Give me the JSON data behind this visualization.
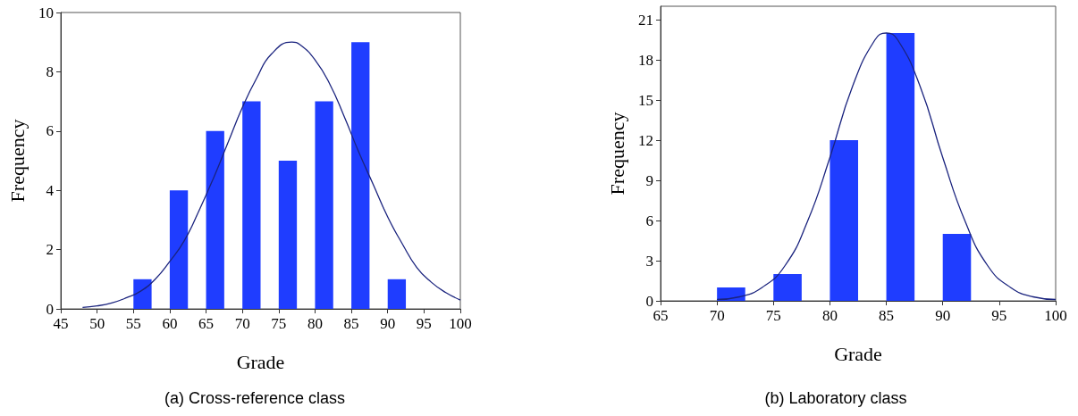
{
  "chart_data": [
    {
      "type": "histogram",
      "title": "(a) Cross-reference class",
      "xlabel": "Grade",
      "ylabel": "Frequency",
      "xlim": [
        45,
        100
      ],
      "xticks": [
        45,
        50,
        55,
        60,
        65,
        70,
        75,
        80,
        85,
        90,
        95,
        100
      ],
      "ylim": [
        0,
        10
      ],
      "yticks": [
        0,
        2,
        4,
        6,
        8,
        10
      ],
      "grid": false,
      "series": [
        {
          "color": "#1f3dff",
          "bins": [
            55,
            57.5,
            60,
            62.5,
            65,
            67.5,
            70,
            72.5,
            75,
            77.5,
            80,
            82.5,
            85,
            87.5,
            90,
            92.5
          ],
          "values": [
            1,
            0,
            4,
            0,
            6,
            0,
            7,
            0,
            5,
            0,
            7,
            0,
            9,
            0,
            1
          ]
        },
        {
          "type": "line",
          "color": "#1a237e",
          "x": [
            48,
            50,
            52,
            54,
            56,
            58,
            60,
            62,
            64,
            66,
            68,
            70,
            72,
            74,
            76.8,
            78,
            80,
            82,
            84,
            86,
            88,
            90,
            92,
            94,
            96,
            98,
            100
          ],
          "values": [
            0.05,
            0.1,
            0.2,
            0.37,
            0.6,
            1.0,
            1.6,
            2.3,
            3.3,
            4.4,
            5.6,
            6.8,
            7.8,
            8.6,
            9,
            8.9,
            8.4,
            7.6,
            6.5,
            5.3,
            4.2,
            3.1,
            2.2,
            1.4,
            0.9,
            0.55,
            0.3
          ]
        }
      ]
    },
    {
      "type": "histogram",
      "title": "(b) Laboratory class",
      "xlabel": "Grade",
      "ylabel": "Frequency",
      "xlim": [
        65,
        100
      ],
      "xticks": [
        65,
        70,
        75,
        80,
        85,
        90,
        95,
        100
      ],
      "ylim": [
        0,
        22
      ],
      "yticks": [
        0,
        3,
        6,
        9,
        12,
        15,
        18,
        21
      ],
      "grid": false,
      "series": [
        {
          "color": "#1f3dff",
          "bins": [
            70,
            72.5,
            75,
            77.5,
            80,
            82.5,
            85,
            87.5,
            90,
            92.5
          ],
          "values": [
            1,
            0,
            2,
            0,
            12,
            0,
            20,
            0,
            5
          ]
        },
        {
          "type": "line",
          "color": "#1a237e",
          "x": [
            70,
            72,
            74,
            76,
            78,
            80,
            82,
            84,
            85,
            86,
            88,
            90,
            92,
            94,
            96,
            98,
            100
          ],
          "values": [
            0.1,
            0.3,
            1.0,
            2.6,
            5.9,
            10.7,
            16.0,
            19.5,
            20,
            19.5,
            16.0,
            10.7,
            5.9,
            2.6,
            1.0,
            0.3,
            0.1
          ]
        }
      ]
    }
  ]
}
